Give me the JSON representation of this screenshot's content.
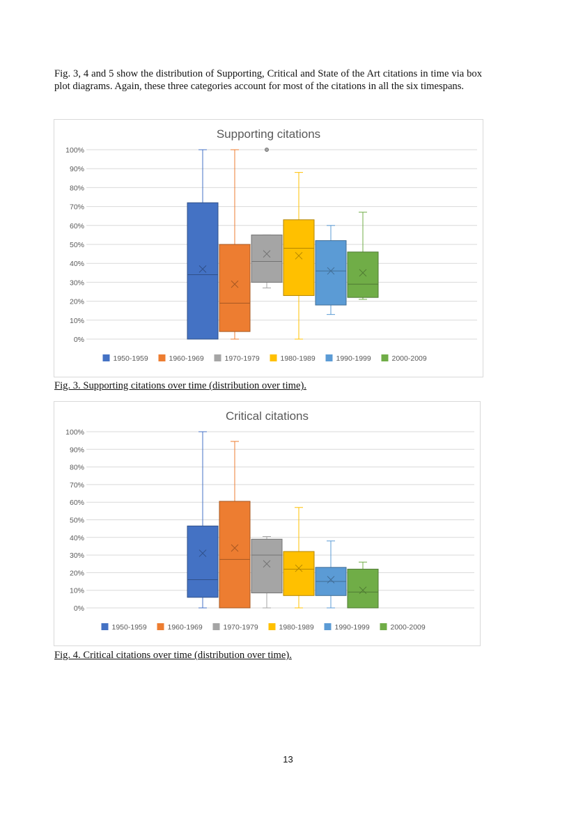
{
  "paragraph": "Fig. 3, 4 and 5 show the distribution of Supporting, Critical and State of the Art citations in time via box plot diagrams. Again, these three categories account for most of the citations in all the six timespans.",
  "captions": [
    "Fig. 3. Supporting citations over time (distribution over time).",
    "Fig. 4. Critical citations over time (distribution over time)."
  ],
  "page_number": "13",
  "chart_data": [
    {
      "type": "box",
      "title": "Supporting citations",
      "ylim": [
        0,
        100
      ],
      "yticks": [
        "0%",
        "10%",
        "20%",
        "30%",
        "40%",
        "50%",
        "60%",
        "70%",
        "80%",
        "90%",
        "100%"
      ],
      "grid": true,
      "legend_placement": "bottom",
      "series": [
        {
          "name": "1950-1959",
          "color": "#4472c4",
          "min": 0,
          "q1": 0,
          "median": 34,
          "q3": 72,
          "max": 100,
          "mean": 37,
          "outliers": []
        },
        {
          "name": "1960-1969",
          "color": "#ed7d31",
          "min": 0,
          "q1": 4,
          "median": 19,
          "q3": 50,
          "max": 100,
          "mean": 29,
          "outliers": []
        },
        {
          "name": "1970-1979",
          "color": "#a5a5a5",
          "min": 27,
          "q1": 30,
          "median": 41,
          "q3": 55,
          "max": 55,
          "mean": 45,
          "outliers": [
            100
          ]
        },
        {
          "name": "1980-1989",
          "color": "#ffc000",
          "min": 0,
          "q1": 23,
          "median": 48,
          "q3": 63,
          "max": 88,
          "mean": 44,
          "outliers": []
        },
        {
          "name": "1990-1999",
          "color": "#5b9bd5",
          "min": 13,
          "q1": 18,
          "median": 36,
          "q3": 52,
          "max": 60,
          "mean": 36,
          "outliers": []
        },
        {
          "name": "2000-2009",
          "color": "#70ad47",
          "min": 21,
          "q1": 22,
          "median": 29,
          "q3": 46,
          "max": 67,
          "mean": 35,
          "outliers": []
        }
      ]
    },
    {
      "type": "box",
      "title": "Critical citations",
      "ylim": [
        0,
        100
      ],
      "yticks": [
        "0%",
        "10%",
        "20%",
        "30%",
        "40%",
        "50%",
        "60%",
        "70%",
        "80%",
        "90%",
        "100%"
      ],
      "grid": true,
      "legend_placement": "bottom",
      "series": [
        {
          "name": "1950-1959",
          "color": "#4472c4",
          "min": 0,
          "q1": 6,
          "median": 16,
          "q3": 46.5,
          "max": 100,
          "mean": 31,
          "outliers": []
        },
        {
          "name": "1960-1969",
          "color": "#ed7d31",
          "min": 0,
          "q1": 0,
          "median": 27.5,
          "q3": 60.5,
          "max": 94.5,
          "mean": 34,
          "outliers": []
        },
        {
          "name": "1970-1979",
          "color": "#a5a5a5",
          "min": 0,
          "q1": 8.5,
          "median": 30,
          "q3": 39,
          "max": 40.5,
          "mean": 25,
          "outliers": []
        },
        {
          "name": "1980-1989",
          "color": "#ffc000",
          "min": 0,
          "q1": 7,
          "median": 22,
          "q3": 32,
          "max": 57,
          "mean": 22.5,
          "outliers": []
        },
        {
          "name": "1990-1999",
          "color": "#5b9bd5",
          "min": 0,
          "q1": 7,
          "median": 15,
          "q3": 23,
          "max": 38,
          "mean": 16,
          "outliers": []
        },
        {
          "name": "2000-2009",
          "color": "#70ad47",
          "min": 0,
          "q1": 0,
          "median": 9,
          "q3": 22,
          "max": 26,
          "mean": 10,
          "outliers": []
        }
      ]
    }
  ]
}
